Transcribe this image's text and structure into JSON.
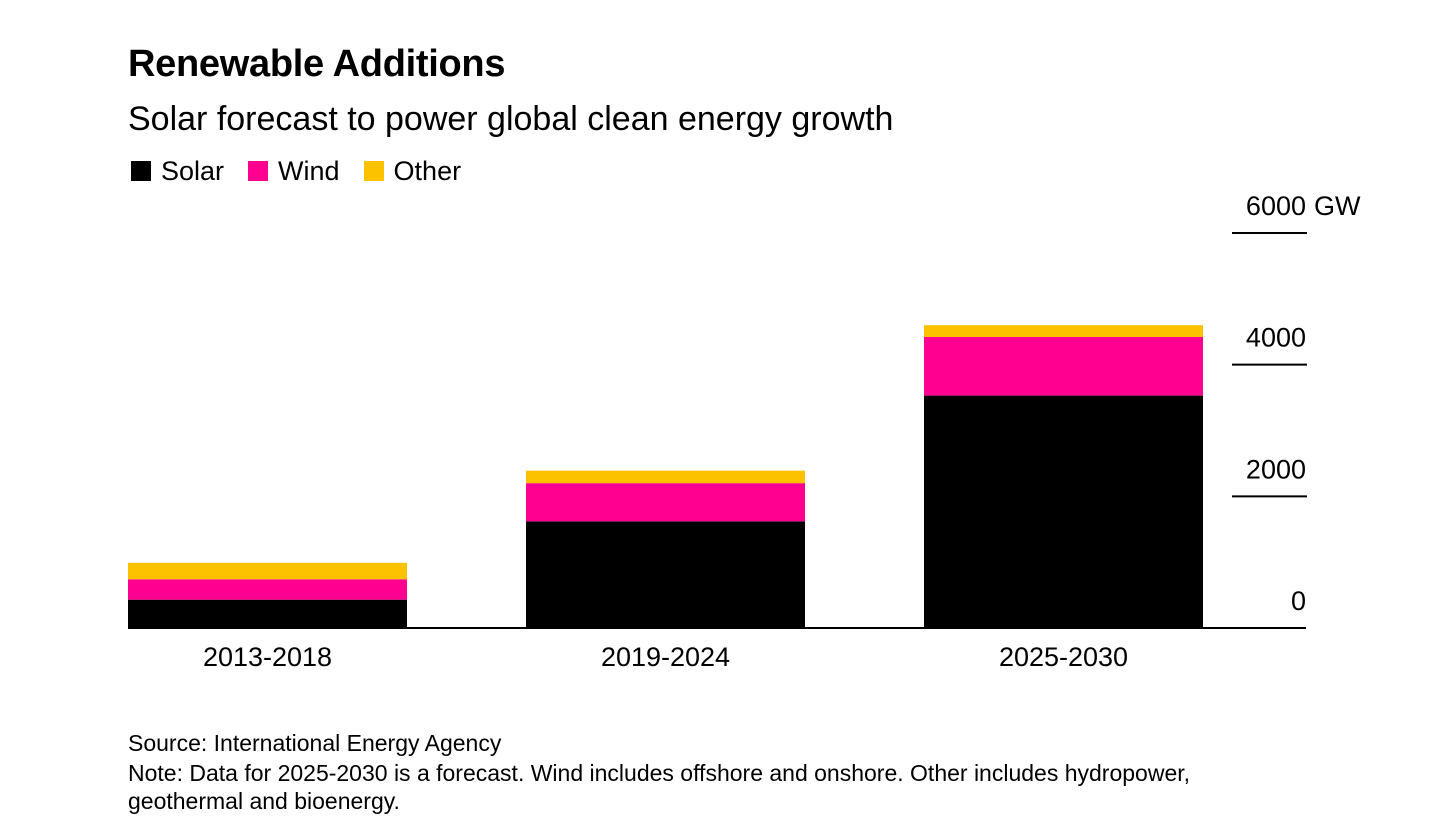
{
  "chart_data": {
    "type": "bar",
    "stacked": true,
    "title": "Renewable Additions",
    "subtitle": "Solar forecast to power global clean energy growth",
    "categories": [
      "2013-2018",
      "2019-2024",
      "2025-2030"
    ],
    "series": [
      {
        "name": "Solar",
        "color": "#000000",
        "values": [
          430,
          1620,
          3530
        ]
      },
      {
        "name": "Wind",
        "color": "#ff0090",
        "values": [
          310,
          580,
          890
        ]
      },
      {
        "name": "Other",
        "color": "#fcc200",
        "values": [
          250,
          190,
          180
        ]
      }
    ],
    "ylim": [
      0,
      6000
    ],
    "yticks": [
      {
        "value": 0,
        "label": "0"
      },
      {
        "value": 2000,
        "label": "2000"
      },
      {
        "value": 4000,
        "label": "4000"
      },
      {
        "value": 6000,
        "label": "6000"
      }
    ],
    "yunit": "GW",
    "grid": false,
    "legend_position": "top-left",
    "y_axis_side": "right"
  },
  "footer": {
    "source": "Source: International Energy Agency",
    "note": "Note: Data for 2025-2030 is a forecast. Wind includes offshore and onshore. Other includes hydropower, geothermal and bioenergy."
  }
}
